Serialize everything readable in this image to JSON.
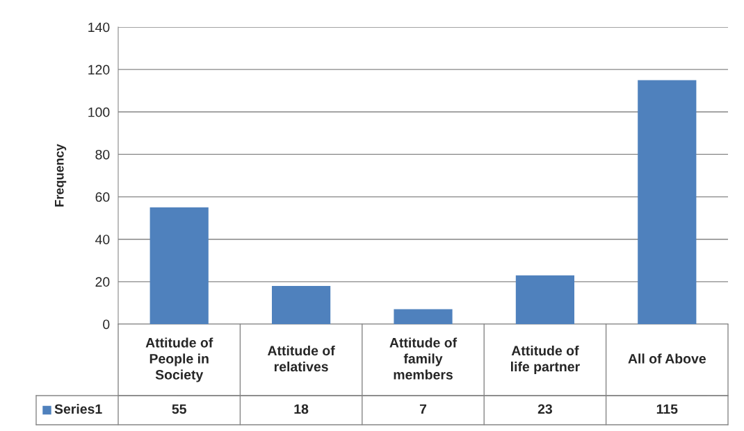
{
  "chart_data": {
    "type": "bar",
    "ylabel": "Frequency",
    "categories": [
      "Attitude of\nPeople in\nSociety",
      "Attitude of\nrelatives",
      "Attitude of\nfamily\nmembers",
      "Attitude of\nlife partner",
      "All of Above"
    ],
    "series": [
      {
        "name": "Series1",
        "color": "#4f81bd",
        "values": [
          55,
          18,
          7,
          23,
          115
        ]
      }
    ],
    "ylim": [
      0,
      140
    ],
    "yticks": [
      0,
      20,
      40,
      60,
      80,
      100,
      120,
      140
    ],
    "grid": "y",
    "data_labels": true,
    "legend": "bottom"
  }
}
